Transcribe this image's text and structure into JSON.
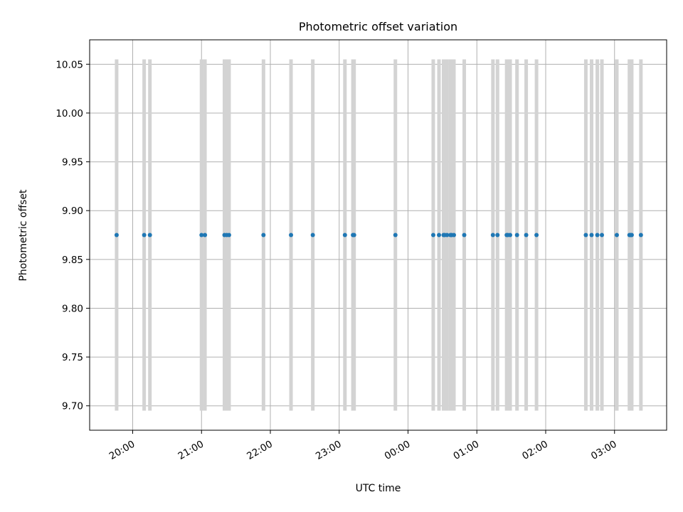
{
  "chart_data": {
    "type": "scatter",
    "title": "Photometric offset variation",
    "xlabel": "UTC time",
    "ylabel": "Photometric offset",
    "x_axis_type": "time",
    "x_ticks": [
      "20:00",
      "21:00",
      "22:00",
      "23:00",
      "00:00",
      "01:00",
      "02:00",
      "03:00"
    ],
    "y_ticks": [
      "9.70",
      "9.75",
      "9.80",
      "9.85",
      "9.90",
      "9.95",
      "10.00",
      "10.05"
    ],
    "ylim": [
      9.675,
      10.075
    ],
    "grid": true,
    "colors": {
      "points": "#1f77b4",
      "error_bars": "#d3d3d3",
      "grid": "#b0b0b0"
    },
    "series": [
      {
        "y_value": 9.875,
        "y_error": 0.18,
        "x": [
          "19:46",
          "20:10",
          "20:15",
          "21:00",
          "21:03",
          "21:20",
          "21:22",
          "21:24",
          "21:54",
          "22:18",
          "22:37",
          "23:05",
          "23:12",
          "23:13",
          "23:49",
          "00:22",
          "00:27",
          "00:31",
          "00:32",
          "00:34",
          "00:37",
          "00:38",
          "00:40",
          "00:49",
          "01:14",
          "01:18",
          "01:26",
          "01:27",
          "01:29",
          "01:35",
          "01:43",
          "01:52",
          "02:35",
          "02:40",
          "02:45",
          "02:49",
          "03:02",
          "03:13",
          "03:14",
          "03:15",
          "03:23"
        ]
      }
    ]
  }
}
